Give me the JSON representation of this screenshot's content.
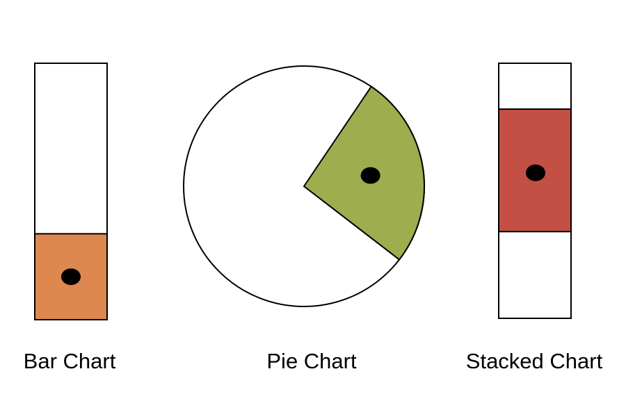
{
  "figure": {
    "bar_chart": {
      "caption": "Bar Chart",
      "fill_fraction": 0.335,
      "fill_color": "#DD884F",
      "marker": "dot"
    },
    "pie_chart": {
      "caption": "Pie Chart",
      "slice_fraction": 0.26,
      "slice_color": "#9EAD4E",
      "marker": "dot"
    },
    "stacked_chart": {
      "caption": "Stacked Chart",
      "segment_start_fraction": 0.34,
      "segment_end_fraction": 0.82,
      "segment_color": "#C44F44",
      "marker": "dot"
    }
  }
}
